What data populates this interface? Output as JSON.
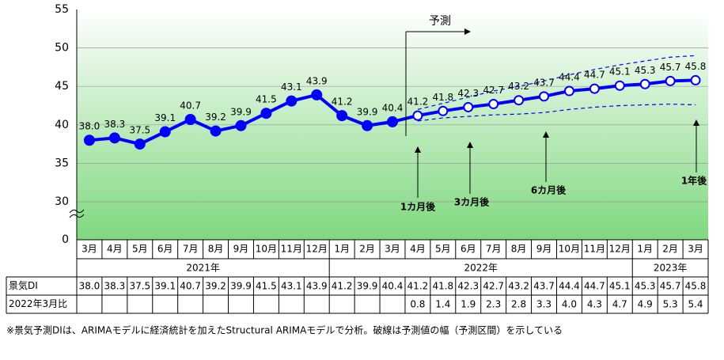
{
  "chart_data": {
    "type": "line",
    "categories": [
      "3月",
      "4月",
      "5月",
      "6月",
      "7月",
      "8月",
      "9月",
      "10月",
      "11月",
      "12月",
      "1月",
      "2月",
      "3月",
      "4月",
      "5月",
      "6月",
      "7月",
      "8月",
      "9月",
      "10月",
      "11月",
      "12月",
      "1月",
      "2月",
      "3月"
    ],
    "years": [
      "2021年",
      "2022年",
      "2023年"
    ],
    "series": [
      {
        "name": "景気DI",
        "color": "#0000ff",
        "values": [
          38.0,
          38.3,
          37.5,
          39.1,
          40.7,
          39.2,
          39.9,
          41.5,
          43.1,
          43.9,
          41.2,
          39.9,
          40.4,
          41.2,
          41.8,
          42.3,
          42.7,
          43.2,
          43.7,
          44.4,
          44.7,
          45.1,
          45.3,
          45.7,
          45.8
        ],
        "value_labels": [
          "38.0",
          "38.3",
          "37.5",
          "39.1",
          "40.7",
          "39.2",
          "39.9",
          "41.5",
          "43.1",
          "43.9",
          "41.2",
          "39.9",
          "40.4",
          "41.2",
          "41.8",
          "42.3",
          "42.7",
          "43.2",
          "43.7",
          "44.4",
          "44.7",
          "45.1",
          "45.3",
          "45.7",
          "45.8"
        ]
      }
    ],
    "forecast": {
      "label": "予測",
      "upper": [
        null,
        null,
        null,
        null,
        null,
        null,
        null,
        null,
        null,
        null,
        null,
        null,
        null,
        42.0,
        42.8,
        43.6,
        44.4,
        45.0,
        45.7,
        46.5,
        47.2,
        47.8,
        48.3,
        48.8,
        49.0
      ],
      "lower": [
        null,
        null,
        null,
        null,
        null,
        null,
        null,
        null,
        null,
        null,
        null,
        null,
        null,
        40.5,
        40.9,
        41.1,
        41.3,
        41.4,
        41.6,
        42.0,
        42.3,
        42.5,
        42.6,
        42.7,
        42.6
      ]
    },
    "annotations": [
      "1カ月後",
      "3カ月後",
      "6カ月後",
      "1年後"
    ],
    "ylim": [
      0,
      55
    ],
    "yticks": [
      0,
      30,
      35,
      40,
      45,
      50,
      55
    ],
    "axis_break": true,
    "grid": true
  },
  "table": {
    "row_headers": [
      "景気DI",
      "2022年3月比"
    ],
    "change_labels": [
      null,
      null,
      null,
      null,
      null,
      null,
      null,
      null,
      null,
      null,
      null,
      null,
      null,
      "0.8",
      "1.4",
      "1.9",
      "2.3",
      "2.8",
      "3.3",
      "4.0",
      "4.3",
      "4.7",
      "4.9",
      "5.3",
      "5.4"
    ]
  },
  "footnote": "※景気予測DIは、ARIMAモデルに経済統計を加えたStructural ARIMAモデルで分析。破線は予測値の幅（予測区間）を示している"
}
